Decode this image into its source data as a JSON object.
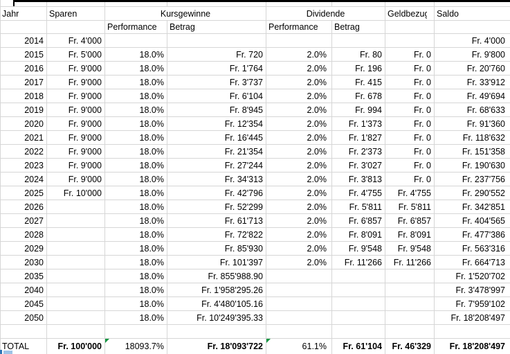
{
  "colors": {
    "gridline": "#d6d6d6",
    "thick_border": "#000000",
    "error_indicator_green": "#149641",
    "bottom_mark_dark": "#2e75b6",
    "bottom_mark_light": "#9dc3e6"
  },
  "header": {
    "jahr": "Jahr",
    "sparen": "Sparen",
    "kursgewinne": "Kursgewinne",
    "dividende": "Dividende",
    "geldbezug": "Geldbezug",
    "saldo": "Saldo",
    "kg_performance": "Performance",
    "kg_betrag": "Betrag",
    "div_performance": "Performance",
    "div_betrag": "Betrag"
  },
  "rows": [
    {
      "jahr": "2014",
      "sparen": "Fr. 4'000",
      "kg_performance": "",
      "kg_betrag": "",
      "div_performance": "",
      "div_betrag": "",
      "geldbezug": "",
      "saldo": "Fr. 4'000"
    },
    {
      "jahr": "2015",
      "sparen": "Fr. 5'000",
      "kg_performance": "18.0%",
      "kg_betrag": "Fr. 720",
      "div_performance": "2.0%",
      "div_betrag": "Fr. 80",
      "geldbezug": "Fr. 0",
      "saldo": "Fr. 9'800"
    },
    {
      "jahr": "2016",
      "sparen": "Fr. 9'000",
      "kg_performance": "18.0%",
      "kg_betrag": "Fr. 1'764",
      "div_performance": "2.0%",
      "div_betrag": "Fr. 196",
      "geldbezug": "Fr. 0",
      "saldo": "Fr. 20'760"
    },
    {
      "jahr": "2017",
      "sparen": "Fr. 9'000",
      "kg_performance": "18.0%",
      "kg_betrag": "Fr. 3'737",
      "div_performance": "2.0%",
      "div_betrag": "Fr. 415",
      "geldbezug": "Fr. 0",
      "saldo": "Fr. 33'912"
    },
    {
      "jahr": "2018",
      "sparen": "Fr. 9'000",
      "kg_performance": "18.0%",
      "kg_betrag": "Fr. 6'104",
      "div_performance": "2.0%",
      "div_betrag": "Fr. 678",
      "geldbezug": "Fr. 0",
      "saldo": "Fr. 49'694"
    },
    {
      "jahr": "2019",
      "sparen": "Fr. 9'000",
      "kg_performance": "18.0%",
      "kg_betrag": "Fr. 8'945",
      "div_performance": "2.0%",
      "div_betrag": "Fr. 994",
      "geldbezug": "Fr. 0",
      "saldo": "Fr. 68'633"
    },
    {
      "jahr": "2020",
      "sparen": "Fr. 9'000",
      "kg_performance": "18.0%",
      "kg_betrag": "Fr. 12'354",
      "div_performance": "2.0%",
      "div_betrag": "Fr. 1'373",
      "geldbezug": "Fr. 0",
      "saldo": "Fr. 91'360"
    },
    {
      "jahr": "2021",
      "sparen": "Fr. 9'000",
      "kg_performance": "18.0%",
      "kg_betrag": "Fr. 16'445",
      "div_performance": "2.0%",
      "div_betrag": "Fr. 1'827",
      "geldbezug": "Fr. 0",
      "saldo": "Fr. 118'632"
    },
    {
      "jahr": "2022",
      "sparen": "Fr. 9'000",
      "kg_performance": "18.0%",
      "kg_betrag": "Fr. 21'354",
      "div_performance": "2.0%",
      "div_betrag": "Fr. 2'373",
      "geldbezug": "Fr. 0",
      "saldo": "Fr. 151'358"
    },
    {
      "jahr": "2023",
      "sparen": "Fr. 9'000",
      "kg_performance": "18.0%",
      "kg_betrag": "Fr. 27'244",
      "div_performance": "2.0%",
      "div_betrag": "Fr. 3'027",
      "geldbezug": "Fr. 0",
      "saldo": "Fr. 190'630"
    },
    {
      "jahr": "2024",
      "sparen": "Fr. 9'000",
      "kg_performance": "18.0%",
      "kg_betrag": "Fr. 34'313",
      "div_performance": "2.0%",
      "div_betrag": "Fr. 3'813",
      "geldbezug": "Fr. 0",
      "saldo": "Fr. 237'756"
    },
    {
      "jahr": "2025",
      "sparen": "Fr. 10'000",
      "kg_performance": "18.0%",
      "kg_betrag": "Fr. 42'796",
      "div_performance": "2.0%",
      "div_betrag": "Fr. 4'755",
      "geldbezug": "Fr. 4'755",
      "saldo": "Fr. 290'552"
    },
    {
      "jahr": "2026",
      "sparen": "",
      "kg_performance": "18.0%",
      "kg_betrag": "Fr. 52'299",
      "div_performance": "2.0%",
      "div_betrag": "Fr. 5'811",
      "geldbezug": "Fr. 5'811",
      "saldo": "Fr. 342'851"
    },
    {
      "jahr": "2027",
      "sparen": "",
      "kg_performance": "18.0%",
      "kg_betrag": "Fr. 61'713",
      "div_performance": "2.0%",
      "div_betrag": "Fr. 6'857",
      "geldbezug": "Fr. 6'857",
      "saldo": "Fr. 404'565"
    },
    {
      "jahr": "2028",
      "sparen": "",
      "kg_performance": "18.0%",
      "kg_betrag": "Fr. 72'822",
      "div_performance": "2.0%",
      "div_betrag": "Fr. 8'091",
      "geldbezug": "Fr. 8'091",
      "saldo": "Fr. 477'386"
    },
    {
      "jahr": "2029",
      "sparen": "",
      "kg_performance": "18.0%",
      "kg_betrag": "Fr. 85'930",
      "div_performance": "2.0%",
      "div_betrag": "Fr. 9'548",
      "geldbezug": "Fr. 9'548",
      "saldo": "Fr. 563'316"
    },
    {
      "jahr": "2030",
      "sparen": "",
      "kg_performance": "18.0%",
      "kg_betrag": "Fr. 101'397",
      "div_performance": "2.0%",
      "div_betrag": "Fr. 11'266",
      "geldbezug": "Fr. 11'266",
      "saldo": "Fr. 664'713"
    },
    {
      "jahr": "2035",
      "sparen": "",
      "kg_performance": "18.0%",
      "kg_betrag": "Fr. 855'988.90",
      "div_performance": "",
      "div_betrag": "",
      "geldbezug": "",
      "saldo": "Fr. 1'520'702"
    },
    {
      "jahr": "2040",
      "sparen": "",
      "kg_performance": "18.0%",
      "kg_betrag": "Fr. 1'958'295.26",
      "div_performance": "",
      "div_betrag": "",
      "geldbezug": "",
      "saldo": "Fr. 3'478'997"
    },
    {
      "jahr": "2045",
      "sparen": "",
      "kg_performance": "18.0%",
      "kg_betrag": "Fr. 4'480'105.16",
      "div_performance": "",
      "div_betrag": "",
      "geldbezug": "",
      "saldo": "Fr. 7'959'102"
    },
    {
      "jahr": "2050",
      "sparen": "",
      "kg_performance": "18.0%",
      "kg_betrag": "Fr. 10'249'395.33",
      "div_performance": "",
      "div_betrag": "",
      "geldbezug": "",
      "saldo": "Fr. 18'208'497"
    }
  ],
  "total": {
    "label": "TOTAL",
    "sparen": "Fr. 100'000",
    "kg_performance": "18093.7%",
    "kg_betrag": "Fr. 18'093'722",
    "div_performance": "61.1%",
    "div_betrag": "Fr. 61'104",
    "geldbezug": "Fr. 46'329",
    "saldo": "Fr. 18'208'497"
  }
}
